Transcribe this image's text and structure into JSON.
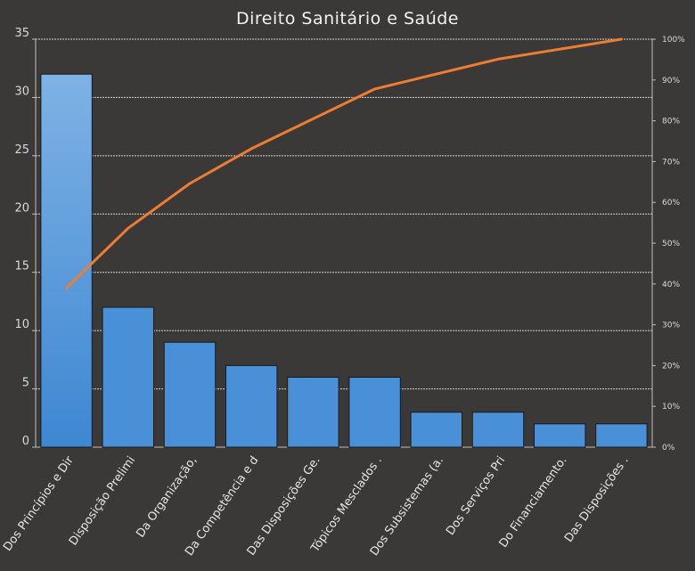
{
  "chart_data": {
    "type": "bar",
    "title": "Direito Sanitário e Saúde",
    "categories": [
      "Dos Princípios e Dir",
      "Disposição Prelimi",
      "Da Organização,",
      "Da Competência e d",
      "Das Disposições Ge.",
      "Tópicos Mesclados .",
      "Dos Subsistemas (a.",
      "Dos Serviços Pri",
      "Do Financiamento.",
      "Das Disposições ."
    ],
    "series": [
      {
        "type": "bar",
        "axis": "left",
        "values": [
          32,
          12,
          9,
          7,
          6,
          6,
          3,
          3,
          2,
          2
        ]
      },
      {
        "type": "line",
        "axis": "right",
        "values": [
          0.3902,
          0.5366,
          0.6463,
          0.7317,
          0.8049,
          0.878,
          0.9146,
          0.9512,
          0.9756,
          1.0
        ]
      }
    ],
    "ylim": [
      0,
      35
    ],
    "yticks": [
      0,
      5,
      10,
      15,
      20,
      25,
      30,
      35
    ],
    "y2lim": [
      0,
      1
    ],
    "y2ticks": [
      "0%",
      "10%",
      "20%",
      "30%",
      "40%",
      "50%",
      "60%",
      "70%",
      "80%",
      "90%",
      "100%"
    ],
    "grid": true,
    "colors": {
      "background": "#3b3938",
      "bar": "#4a90d9",
      "bar_light": "#7fb2e5",
      "line": "#ed7d31",
      "text": "#e6e6e6"
    }
  }
}
